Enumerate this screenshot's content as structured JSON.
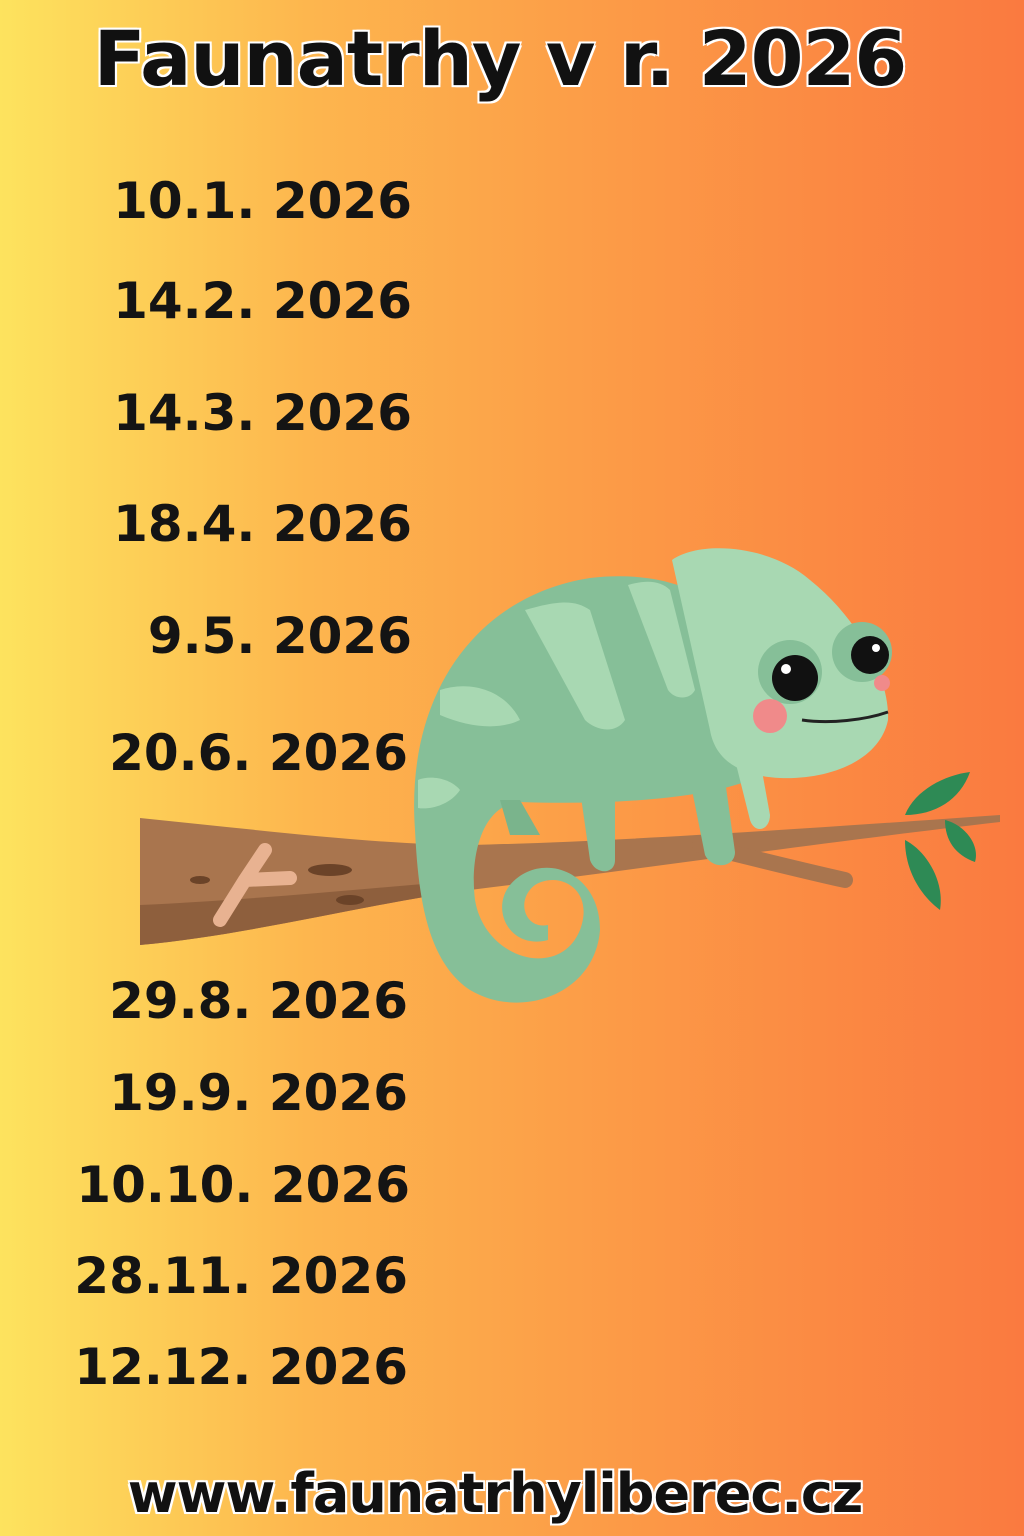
{
  "title": "Faunatrhy v r. 2026",
  "dates": [
    "10.1. 2026",
    "14.2. 2026",
    "14.3. 2026",
    "18.4. 2026",
    "9.5. 2026",
    "20.6. 2026",
    "29.8. 2026",
    "19.9. 2026",
    "10.10. 2026",
    "28.11. 2026",
    "12.12. 2026"
  ],
  "website": "www.faunatrhyliberec.cz",
  "colors": {
    "background_left": "#fde35e",
    "background_right": "#fa7a40",
    "chameleon": "#86bf98",
    "stripes": "#a8d8b2",
    "branch": "#a9754e",
    "leaves": "#2e8a55"
  },
  "illustration": "chameleon-on-branch"
}
